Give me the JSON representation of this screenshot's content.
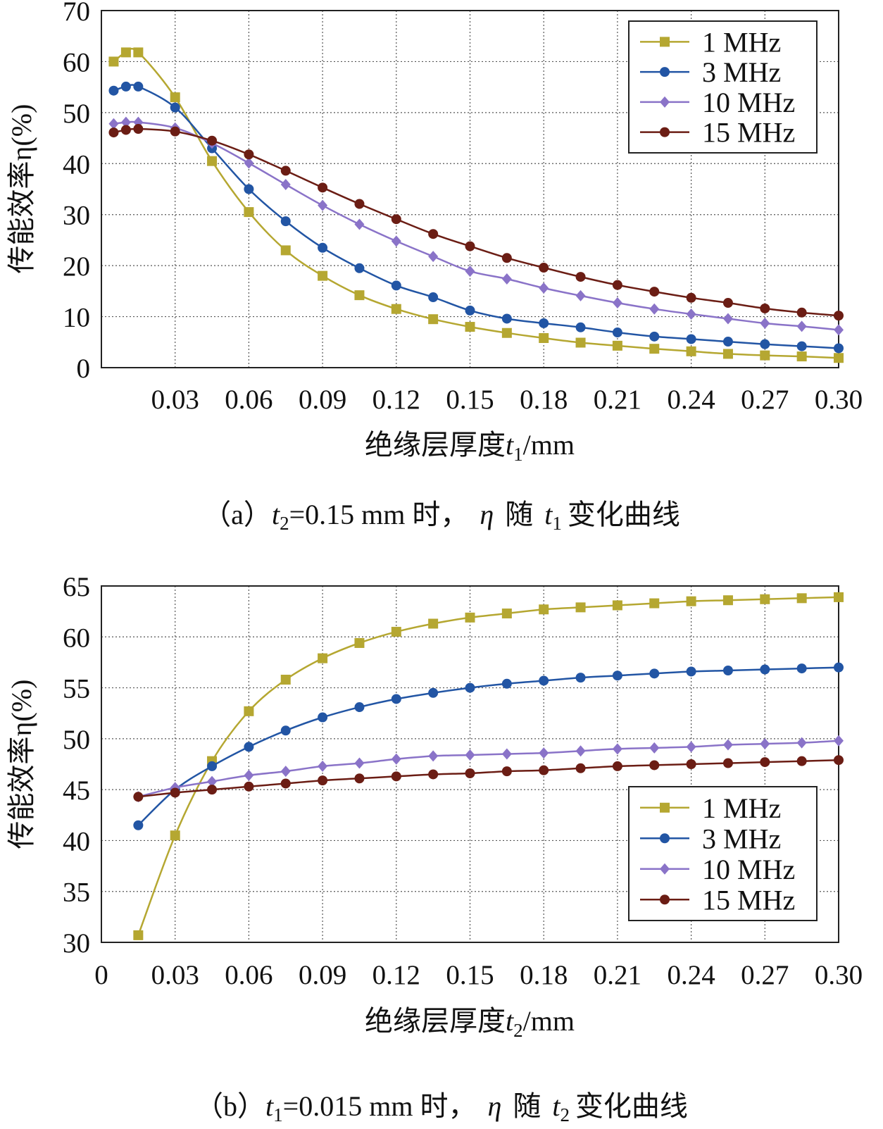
{
  "charts": [
    {
      "id": "a",
      "caption": {
        "open": "（a）",
        "var1": "t",
        "sub1": "2",
        "mid": "=0.15 mm 时，",
        "eta": "η",
        "sui": "随",
        "var2": "t",
        "sub2": "1",
        "tail": "变化曲线"
      },
      "ylabel": "传能效率η(%)",
      "xlabel": {
        "prefix": "绝缘层厚度",
        "var": "t",
        "sub": "1",
        "unit": "/mm"
      }
    },
    {
      "id": "b",
      "caption": {
        "open": "（b）",
        "var1": "t",
        "sub1": "1",
        "mid": "=0.015 mm 时，",
        "eta": "η",
        "sui": "随",
        "var2": "t",
        "sub2": "2",
        "tail": "变化曲线"
      },
      "ylabel": "传能效率η(%)",
      "xlabel": {
        "prefix": "绝缘层厚度",
        "var": "t",
        "sub": "2",
        "unit": "/mm"
      }
    }
  ],
  "chart_data": [
    {
      "type": "line",
      "xlim": [
        0,
        0.3
      ],
      "ylim": [
        0,
        70
      ],
      "xticks": [
        "0.03",
        "0.06",
        "0.09",
        "0.12",
        "0.15",
        "0.18",
        "0.21",
        "0.24",
        "0.27",
        "0.30"
      ],
      "xtick_values": [
        0.03,
        0.06,
        0.09,
        0.12,
        0.15,
        0.18,
        0.21,
        0.24,
        0.27,
        0.3
      ],
      "yticks": [
        "0",
        "10",
        "20",
        "30",
        "40",
        "50",
        "60",
        "70"
      ],
      "ytick_values": [
        0,
        10,
        20,
        30,
        40,
        50,
        60,
        70
      ],
      "grid": true,
      "legend_position": "top-right",
      "series": [
        {
          "name": "1 MHz",
          "color": "#b5a731",
          "marker": "square",
          "x": [
            0.005,
            0.01,
            0.015,
            0.03,
            0.045,
            0.06,
            0.075,
            0.09,
            0.105,
            0.12,
            0.135,
            0.15,
            0.165,
            0.18,
            0.195,
            0.21,
            0.225,
            0.24,
            0.255,
            0.27,
            0.285,
            0.3
          ],
          "y": [
            60,
            61.8,
            61.8,
            53,
            40.5,
            30.5,
            23,
            18,
            14.2,
            11.5,
            9.5,
            8,
            6.8,
            5.8,
            4.9,
            4.3,
            3.7,
            3.2,
            2.7,
            2.4,
            2.2,
            1.9
          ]
        },
        {
          "name": "3 MHz",
          "color": "#2255a4",
          "marker": "circle",
          "x": [
            0.005,
            0.01,
            0.015,
            0.03,
            0.045,
            0.06,
            0.075,
            0.09,
            0.105,
            0.12,
            0.135,
            0.15,
            0.165,
            0.18,
            0.195,
            0.21,
            0.225,
            0.24,
            0.255,
            0.27,
            0.285,
            0.3
          ],
          "y": [
            54.3,
            55.1,
            55.1,
            51,
            43,
            35,
            28.7,
            23.5,
            19.5,
            16.1,
            13.8,
            11.2,
            9.6,
            8.7,
            7.9,
            6.9,
            6.1,
            5.6,
            5.1,
            4.6,
            4.2,
            3.8
          ]
        },
        {
          "name": "10 MHz",
          "color": "#8a73c8",
          "marker": "diamond",
          "x": [
            0.005,
            0.01,
            0.015,
            0.03,
            0.045,
            0.06,
            0.075,
            0.09,
            0.105,
            0.12,
            0.135,
            0.15,
            0.165,
            0.18,
            0.195,
            0.21,
            0.225,
            0.24,
            0.255,
            0.27,
            0.285,
            0.3
          ],
          "y": [
            47.8,
            48.1,
            48.1,
            47,
            44,
            40.1,
            35.9,
            31.8,
            28.1,
            24.8,
            21.8,
            18.9,
            17.4,
            15.6,
            14.1,
            12.7,
            11.5,
            10.5,
            9.6,
            8.7,
            8.1,
            7.4
          ]
        },
        {
          "name": "15 MHz",
          "color": "#6b1d14",
          "marker": "circle",
          "x": [
            0.005,
            0.01,
            0.015,
            0.03,
            0.045,
            0.06,
            0.075,
            0.09,
            0.105,
            0.12,
            0.135,
            0.15,
            0.165,
            0.18,
            0.195,
            0.21,
            0.225,
            0.24,
            0.255,
            0.27,
            0.285,
            0.3
          ],
          "y": [
            46.1,
            46.6,
            46.8,
            46.3,
            44.5,
            41.8,
            38.6,
            35.3,
            32.1,
            29.1,
            26.2,
            23.8,
            21.5,
            19.6,
            17.8,
            16.2,
            14.9,
            13.7,
            12.7,
            11.6,
            10.8,
            10.2
          ]
        }
      ]
    },
    {
      "type": "line",
      "xlim": [
        0,
        0.3
      ],
      "ylim": [
        30,
        65
      ],
      "xticks": [
        "0",
        "0.03",
        "0.06",
        "0.09",
        "0.12",
        "0.15",
        "0.18",
        "0.21",
        "0.24",
        "0.27",
        "0.30"
      ],
      "xtick_values": [
        0,
        0.03,
        0.06,
        0.09,
        0.12,
        0.15,
        0.18,
        0.21,
        0.24,
        0.27,
        0.3
      ],
      "yticks": [
        "30",
        "35",
        "40",
        "45",
        "50",
        "55",
        "60",
        "65"
      ],
      "ytick_values": [
        30,
        35,
        40,
        45,
        50,
        55,
        60,
        65
      ],
      "grid": true,
      "legend_position": "bottom-right",
      "series": [
        {
          "name": "1 MHz",
          "color": "#b5a731",
          "marker": "square",
          "x": [
            0.015,
            0.03,
            0.045,
            0.06,
            0.075,
            0.09,
            0.105,
            0.12,
            0.135,
            0.15,
            0.165,
            0.18,
            0.195,
            0.21,
            0.225,
            0.24,
            0.255,
            0.27,
            0.285,
            0.3
          ],
          "y": [
            30.7,
            40.5,
            47.8,
            52.7,
            55.8,
            57.9,
            59.4,
            60.5,
            61.3,
            61.9,
            62.3,
            62.7,
            62.9,
            63.1,
            63.3,
            63.5,
            63.6,
            63.7,
            63.8,
            63.9
          ]
        },
        {
          "name": "3 MHz",
          "color": "#2255a4",
          "marker": "circle",
          "x": [
            0.015,
            0.03,
            0.045,
            0.06,
            0.075,
            0.09,
            0.105,
            0.12,
            0.135,
            0.15,
            0.165,
            0.18,
            0.195,
            0.21,
            0.225,
            0.24,
            0.255,
            0.27,
            0.285,
            0.3
          ],
          "y": [
            41.5,
            45,
            47.3,
            49.2,
            50.8,
            52.1,
            53.1,
            53.9,
            54.5,
            55,
            55.4,
            55.7,
            56,
            56.2,
            56.4,
            56.6,
            56.7,
            56.8,
            56.9,
            57
          ]
        },
        {
          "name": "10 MHz",
          "color": "#8a73c8",
          "marker": "diamond",
          "x": [
            0.015,
            0.03,
            0.045,
            0.06,
            0.075,
            0.09,
            0.105,
            0.12,
            0.135,
            0.15,
            0.165,
            0.18,
            0.195,
            0.21,
            0.225,
            0.24,
            0.255,
            0.27,
            0.285,
            0.3
          ],
          "y": [
            44.3,
            45.2,
            45.8,
            46.4,
            46.8,
            47.3,
            47.6,
            48,
            48.3,
            48.4,
            48.5,
            48.6,
            48.8,
            49,
            49.1,
            49.2,
            49.4,
            49.5,
            49.6,
            49.8
          ]
        },
        {
          "name": "15 MHz",
          "color": "#6b1d14",
          "marker": "circle",
          "x": [
            0.015,
            0.03,
            0.045,
            0.06,
            0.075,
            0.09,
            0.105,
            0.12,
            0.135,
            0.15,
            0.165,
            0.18,
            0.195,
            0.21,
            0.225,
            0.24,
            0.255,
            0.27,
            0.285,
            0.3
          ],
          "y": [
            44.3,
            44.7,
            45,
            45.3,
            45.6,
            45.9,
            46.1,
            46.3,
            46.5,
            46.6,
            46.8,
            46.9,
            47.1,
            47.3,
            47.4,
            47.5,
            47.6,
            47.7,
            47.8,
            47.9
          ]
        }
      ]
    }
  ]
}
